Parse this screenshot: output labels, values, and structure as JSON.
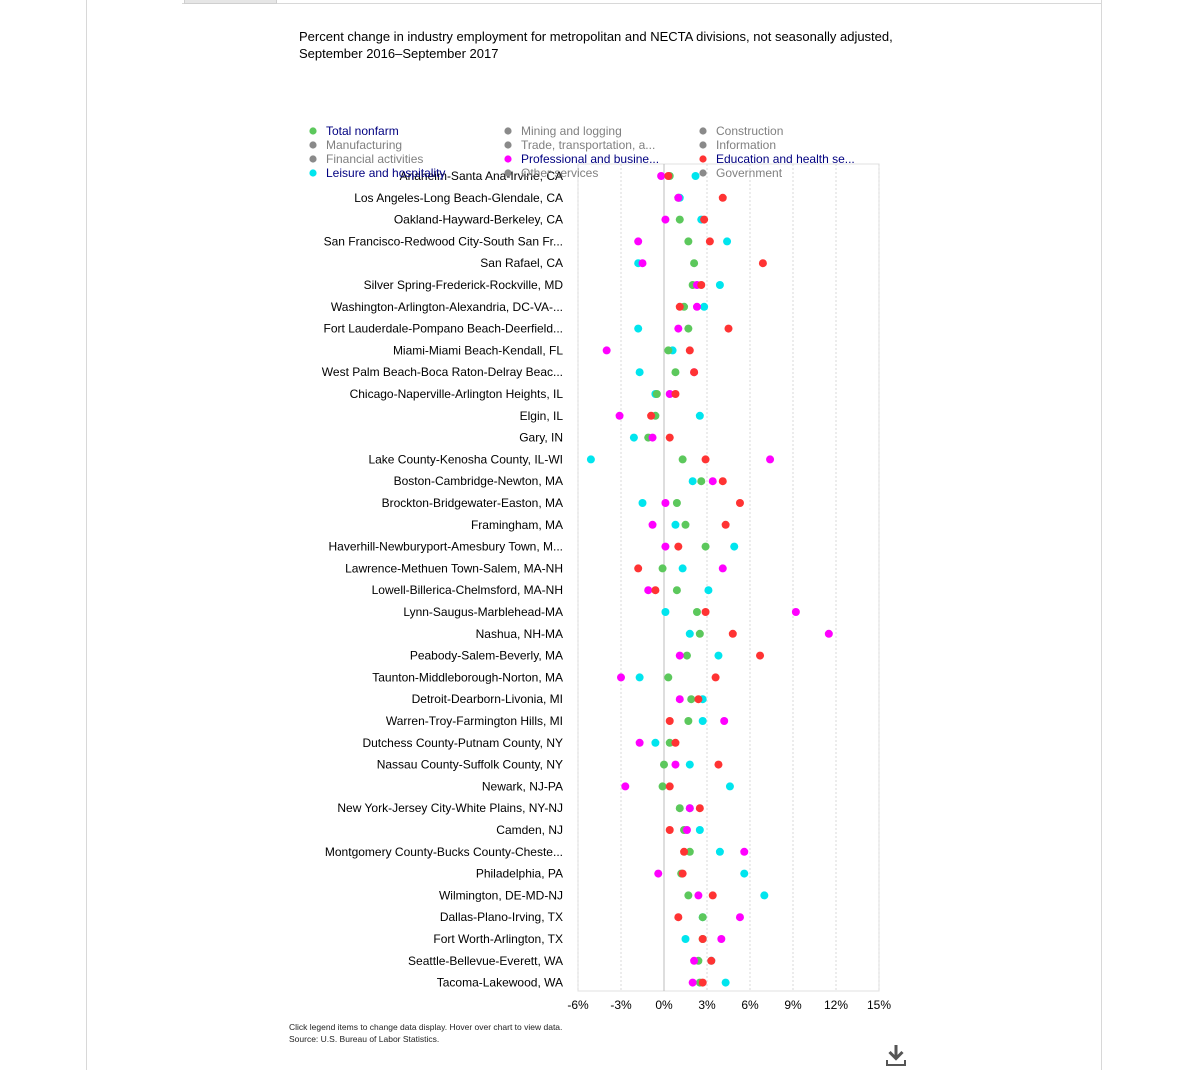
{
  "page": {
    "title": "Percent change in industry employment for metropolitan and NECTA divisions, not seasonally adjusted, September 2016–September 2017",
    "note": "Click legend items to change data display. Hover over chart to view data.",
    "source": "Source: U.S. Bureau of Labor Statistics."
  },
  "chart_data": {
    "type": "scatter",
    "orientation": "horizontal-dot-plot",
    "title": "Percent change in industry employment for metropolitan and NECTA divisions, not seasonally adjusted, September 2016–September 2017",
    "x_ticks": [
      "-6%",
      "-3%",
      "0%",
      "3%",
      "6%",
      "9%",
      "12%",
      "15%"
    ],
    "xlim": [
      -6,
      15
    ],
    "grid": true,
    "legend_position": "top",
    "legend": [
      {
        "name": "Total nonfarm",
        "color": "#5cc85c",
        "active": true
      },
      {
        "name": "Mining and logging",
        "color": "#8a8a8a",
        "active": false
      },
      {
        "name": "Construction",
        "color": "#8a8a8a",
        "active": false
      },
      {
        "name": "Manufacturing",
        "color": "#8a8a8a",
        "active": false
      },
      {
        "name": "Trade, transportation, a...",
        "color": "#8a8a8a",
        "active": false
      },
      {
        "name": "Information",
        "color": "#8a8a8a",
        "active": false
      },
      {
        "name": "Financial activities",
        "color": "#8a8a8a",
        "active": false
      },
      {
        "name": "Professional and busine...",
        "color": "#ff00ff",
        "active": true
      },
      {
        "name": "Education and health se...",
        "color": "#ff3333",
        "active": true
      },
      {
        "name": "Leisure and hospitality",
        "color": "#00e5ee",
        "active": true
      },
      {
        "name": "Other services",
        "color": "#8a8a8a",
        "active": false
      },
      {
        "name": "Government",
        "color": "#8a8a8a",
        "active": false
      }
    ],
    "categories": [
      "Anaheim-Santa Ana-Irvine, CA",
      "Los Angeles-Long Beach-Glendale, CA",
      "Oakland-Hayward-Berkeley, CA",
      "San Francisco-Redwood City-South San Fr...",
      "San Rafael, CA",
      "Silver Spring-Frederick-Rockville, MD",
      "Washington-Arlington-Alexandria, DC-VA-...",
      "Fort Lauderdale-Pompano Beach-Deerfield...",
      "Miami-Miami Beach-Kendall, FL",
      "West Palm Beach-Boca Raton-Delray Beac...",
      "Chicago-Naperville-Arlington Heights, IL",
      "Elgin, IL",
      "Gary, IN",
      "Lake County-Kenosha County, IL-WI",
      "Boston-Cambridge-Newton, MA",
      "Brockton-Bridgewater-Easton, MA",
      "Framingham, MA",
      "Haverhill-Newburyport-Amesbury Town, M...",
      "Lawrence-Methuen Town-Salem, MA-NH",
      "Lowell-Billerica-Chelmsford, MA-NH",
      "Lynn-Saugus-Marblehead-MA",
      "Nashua, NH-MA",
      "Peabody-Salem-Beverly, MA",
      "Taunton-Middleborough-Norton, MA",
      "Detroit-Dearborn-Livonia, MI",
      "Warren-Troy-Farmington Hills, MI",
      "Dutchess County-Putnam County, NY",
      "Nassau County-Suffolk County, NY",
      "Newark, NJ-PA",
      "New York-Jersey City-White Plains, NY-NJ",
      "Camden, NJ",
      "Montgomery County-Bucks County-Cheste...",
      "Philadelphia, PA",
      "Wilmington, DE-MD-NJ",
      "Dallas-Plano-Irving, TX",
      "Fort Worth-Arlington, TX",
      "Seattle-Bellevue-Everett, WA",
      "Tacoma-Lakewood, WA"
    ],
    "series": [
      {
        "name": "Leisure and hospitality",
        "color": "#00e5ee",
        "values": [
          2.2,
          1.1,
          2.6,
          4.4,
          -1.8,
          3.9,
          2.8,
          -1.8,
          0.6,
          -1.7,
          -0.6,
          2.5,
          -2.1,
          -5.1,
          2.0,
          -1.5,
          0.8,
          4.9,
          1.3,
          3.1,
          0.1,
          1.8,
          3.8,
          -1.7,
          2.7,
          2.7,
          -0.6,
          1.8,
          4.6,
          1.8,
          2.5,
          3.9,
          5.6,
          7.0,
          2.7,
          1.5,
          3.3,
          4.3
        ]
      },
      {
        "name": "Total nonfarm",
        "color": "#5cc85c",
        "values": [
          0.4,
          1.0,
          1.1,
          1.7,
          2.1,
          2.0,
          1.4,
          1.7,
          0.3,
          0.8,
          -0.5,
          -0.6,
          -1.1,
          1.3,
          2.6,
          0.9,
          1.5,
          2.9,
          -0.1,
          0.9,
          2.3,
          2.5,
          1.6,
          0.3,
          1.9,
          1.7,
          0.4,
          0.0,
          -0.1,
          1.1,
          1.4,
          1.8,
          1.2,
          1.7,
          2.7,
          2.7,
          2.4,
          2.5
        ]
      },
      {
        "name": "Professional and busine...",
        "color": "#ff00ff",
        "values": [
          -0.2,
          1.0,
          0.1,
          -1.8,
          -1.5,
          2.3,
          2.3,
          1.0,
          -4.0,
          2.1,
          0.4,
          -3.1,
          -0.8,
          7.4,
          3.4,
          0.1,
          -0.8,
          0.1,
          4.1,
          -1.1,
          9.2,
          11.5,
          1.1,
          -3.0,
          1.1,
          4.2,
          -1.7,
          0.8,
          -2.7,
          1.8,
          1.6,
          5.6,
          -0.4,
          2.4,
          5.3,
          4.0,
          2.1,
          2.0
        ]
      },
      {
        "name": "Education and health se...",
        "color": "#ff3333",
        "values": [
          0.3,
          4.1,
          2.8,
          3.2,
          6.9,
          2.6,
          1.1,
          4.5,
          1.8,
          2.1,
          0.8,
          -0.9,
          0.4,
          2.9,
          4.1,
          5.3,
          4.3,
          1.0,
          -1.8,
          -0.6,
          2.9,
          4.8,
          6.7,
          3.6,
          2.4,
          0.4,
          0.8,
          3.8,
          0.4,
          2.5,
          0.4,
          1.4,
          1.3,
          3.4,
          1.0,
          2.7,
          3.3,
          2.7
        ]
      }
    ]
  }
}
